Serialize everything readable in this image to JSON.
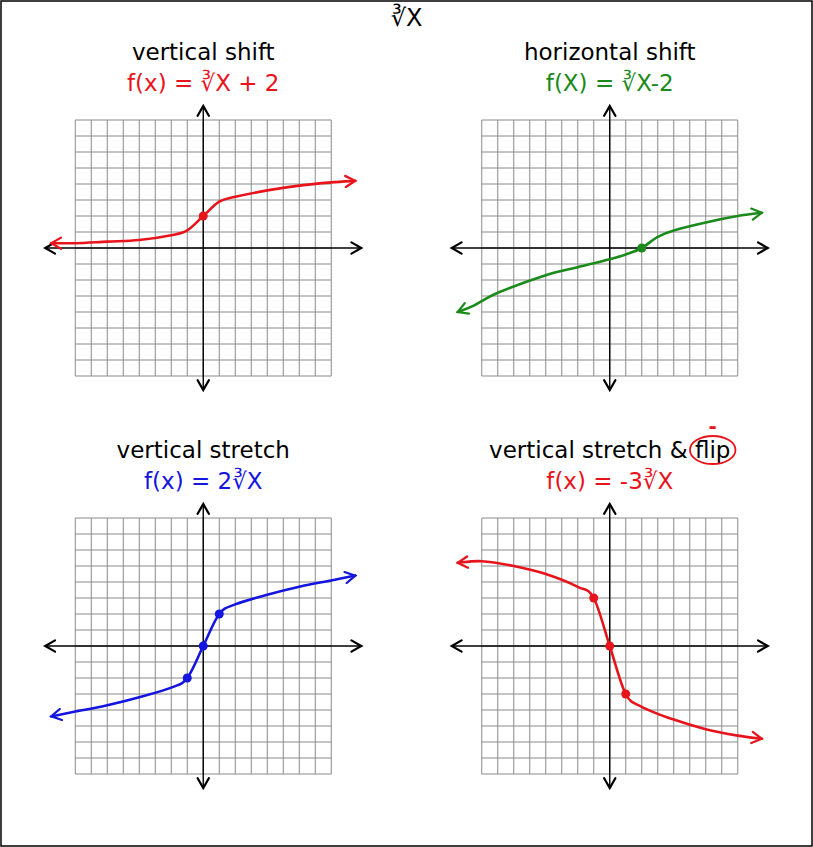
{
  "title": "∛X",
  "chart_data": [
    {
      "type": "line",
      "title": "vertical shift",
      "subtitle": "f(x) = ∛X + 2",
      "color": "#e8141c",
      "xlim": [
        -10,
        10
      ],
      "ylim": [
        -9,
        9
      ],
      "xticks": [
        -8,
        -7,
        -6,
        -5,
        -4,
        -3,
        -2,
        -1,
        0,
        1,
        2,
        3,
        4,
        5,
        6,
        7,
        8
      ],
      "yticks": [
        -8,
        -7,
        -6,
        -5,
        -4,
        -3,
        -2,
        -1,
        0,
        1,
        2,
        3,
        4,
        5,
        6,
        7,
        8
      ],
      "grid": true,
      "tick_labels": false,
      "series": [
        {
          "type": "line",
          "color": "#e8141c",
          "x": [
            -9.5,
            -8,
            -6,
            -4,
            -2,
            -1,
            0,
            1,
            2,
            4,
            6,
            8,
            9.5
          ],
          "values": [
            0.3,
            0.3,
            0.4,
            0.5,
            0.8,
            1.1,
            2,
            2.9,
            3.2,
            3.6,
            3.9,
            4.1,
            4.2
          ]
        },
        {
          "type": "scatter",
          "marker": "dot",
          "color": "#e8141c",
          "x": [
            0
          ],
          "values": [
            2
          ]
        }
      ]
    },
    {
      "type": "line",
      "title": "horizontal shift",
      "subtitle": "f(X) = ∛X-2",
      "color": "#1a8a1a",
      "xlim": [
        -10,
        10
      ],
      "ylim": [
        -9,
        9
      ],
      "xticks": [
        -8,
        -7,
        -6,
        -5,
        -4,
        -3,
        -2,
        -1,
        0,
        1,
        2,
        3,
        4,
        5,
        6,
        7,
        8
      ],
      "yticks": [
        -8,
        -7,
        -6,
        -5,
        -4,
        -3,
        -2,
        -1,
        0,
        1,
        2,
        3,
        4,
        5,
        6,
        7,
        8
      ],
      "grid": true,
      "tick_labels": false,
      "series": [
        {
          "type": "line",
          "color": "#1a8a1a",
          "x": [
            -9.5,
            -8.5,
            -7,
            -4,
            -2,
            0,
            1,
            2,
            3,
            4,
            6,
            8,
            9.5
          ],
          "values": [
            -4,
            -3.6,
            -2.8,
            -1.7,
            -1.2,
            -0.7,
            -0.4,
            0,
            0.7,
            1.1,
            1.6,
            2,
            2.2
          ]
        },
        {
          "type": "scatter",
          "marker": "dot",
          "color": "#1a8a1a",
          "x": [
            2
          ],
          "values": [
            0
          ]
        }
      ]
    },
    {
      "type": "line",
      "title": "vertical stretch",
      "subtitle": "f(x) = 2∛X",
      "color": "#1515e0",
      "xlim": [
        -10,
        10
      ],
      "ylim": [
        -9,
        9
      ],
      "xticks": [
        -8,
        -7,
        -6,
        -5,
        -4,
        -3,
        -2,
        -1,
        0,
        1,
        2,
        3,
        4,
        5,
        6,
        7,
        8
      ],
      "yticks": [
        -8,
        -7,
        -6,
        -5,
        -4,
        -3,
        -2,
        -1,
        0,
        1,
        2,
        3,
        4,
        5,
        6,
        7,
        8
      ],
      "grid": true,
      "tick_labels": false,
      "series": [
        {
          "type": "line",
          "color": "#1515e0",
          "x": [
            -9.5,
            -8,
            -6,
            -4,
            -2,
            -1,
            0,
            1,
            2,
            4,
            6,
            8,
            9.5
          ],
          "values": [
            -4.4,
            -4.1,
            -3.7,
            -3.2,
            -2.6,
            -2,
            0,
            2,
            2.6,
            3.2,
            3.7,
            4.1,
            4.4
          ]
        },
        {
          "type": "scatter",
          "marker": "dot",
          "color": "#1515e0",
          "x": [
            -1,
            0,
            1
          ],
          "values": [
            -2,
            0,
            2
          ]
        }
      ]
    },
    {
      "type": "line",
      "title": "vertical stretch & flip",
      "subtitle": "f(x) = -3∛X",
      "color": "#e8141c",
      "annotations": [
        "-"
      ],
      "xlim": [
        -10,
        10
      ],
      "ylim": [
        -9,
        9
      ],
      "xticks": [
        -8,
        -7,
        -6,
        -5,
        -4,
        -3,
        -2,
        -1,
        0,
        1,
        2,
        3,
        4,
        5,
        6,
        7,
        8
      ],
      "yticks": [
        -8,
        -7,
        -6,
        -5,
        -4,
        -3,
        -2,
        -1,
        0,
        1,
        2,
        3,
        4,
        5,
        6,
        7,
        8
      ],
      "grid": true,
      "tick_labels": false,
      "series": [
        {
          "type": "line",
          "color": "#e8141c",
          "x": [
            -9.5,
            -8,
            -6,
            -4,
            -2,
            -1,
            0,
            1,
            2,
            4,
            6,
            8,
            9.5
          ],
          "values": [
            5.2,
            5.3,
            5.0,
            4.5,
            3.7,
            3,
            0,
            -3,
            -3.8,
            -4.6,
            -5.2,
            -5.6,
            -5.8
          ]
        },
        {
          "type": "scatter",
          "marker": "dot",
          "color": "#e8141c",
          "x": [
            -1,
            0,
            1
          ],
          "values": [
            3,
            0,
            -3
          ]
        }
      ]
    }
  ]
}
